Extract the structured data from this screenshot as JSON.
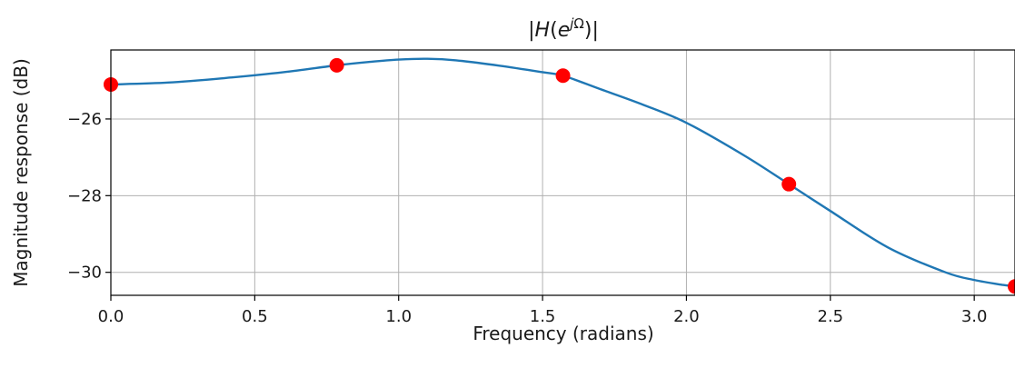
{
  "chart_data": {
    "type": "line",
    "title": "|H(e^{jΩ})|",
    "xlabel": "Frequency (radians)",
    "ylabel": "Magnitude response (dB)",
    "xlim": [
      0.0,
      3.14159
    ],
    "ylim": [
      -30.6,
      -24.2
    ],
    "xticks": [
      0.0,
      0.5,
      1.0,
      1.5,
      2.0,
      2.5,
      3.0
    ],
    "xtick_labels": [
      "0.0",
      "0.5",
      "1.0",
      "1.5",
      "2.0",
      "2.5",
      "3.0"
    ],
    "yticks": [
      -26,
      -28,
      -30
    ],
    "ytick_labels": [
      "−26",
      "−28",
      "−30"
    ],
    "grid": true,
    "series": [
      {
        "style": "line",
        "color": "#1f77b4",
        "x": [
          0.0,
          0.2,
          0.4,
          0.6,
          0.785,
          0.9,
          1.0,
          1.1,
          1.2,
          1.35,
          1.5,
          1.571,
          1.7,
          1.85,
          2.0,
          2.2,
          2.356,
          2.5,
          2.7,
          2.9,
          3.0,
          3.1,
          3.1416
        ],
        "y": [
          -25.1,
          -25.05,
          -24.93,
          -24.78,
          -24.6,
          -24.51,
          -24.45,
          -24.43,
          -24.47,
          -24.61,
          -24.78,
          -24.87,
          -25.22,
          -25.63,
          -26.1,
          -26.95,
          -27.7,
          -28.4,
          -29.35,
          -30.0,
          -30.2,
          -30.33,
          -30.37
        ]
      },
      {
        "style": "markers",
        "color": "#ff0000",
        "x": [
          0.0,
          0.785,
          1.571,
          2.356,
          3.1416
        ],
        "y": [
          -25.1,
          -24.6,
          -24.87,
          -27.7,
          -30.37
        ]
      }
    ]
  }
}
